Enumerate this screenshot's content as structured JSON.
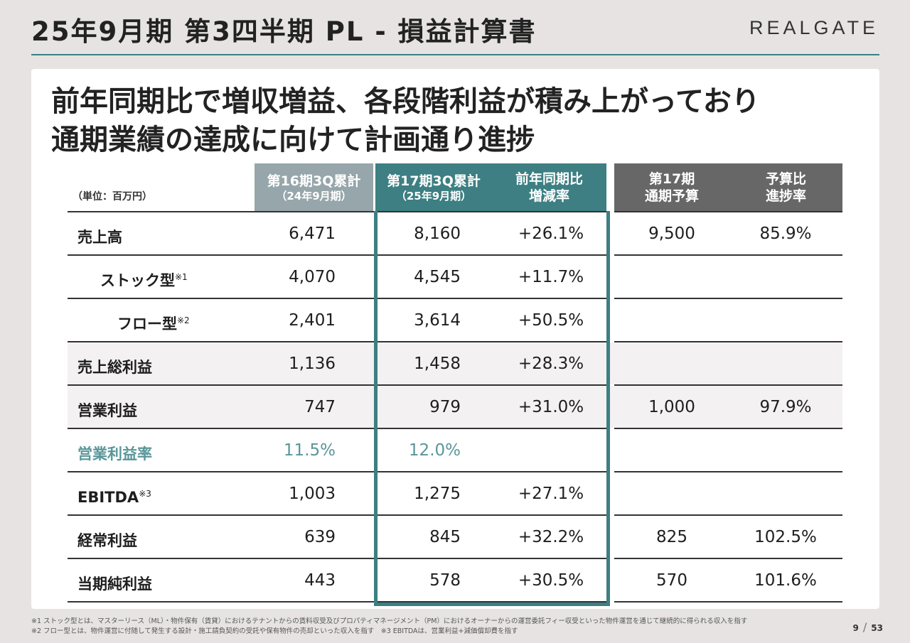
{
  "header": {
    "title": "25年9月期 第3四半期 PL - 損益計算書",
    "logo": "REALGATE"
  },
  "headline": {
    "line1": "前年同期比で増収増益、各段階利益が積み上がっており",
    "line2": "通期業績の達成に向けて計画通り進捗"
  },
  "table": {
    "unit": "（単位：百万円）",
    "columns": {
      "prev": {
        "label": "第16期3Q累計",
        "sub": "（24年9月期）"
      },
      "cur": {
        "label": "第17期3Q累計",
        "sub": "（25年9月期）"
      },
      "yoy": {
        "label1": "前年同期比",
        "label2": "増減率"
      },
      "budget": {
        "label1": "第17期",
        "label2": "通期予算"
      },
      "progress": {
        "label1": "予算比",
        "label2": "進捗率"
      }
    },
    "rows": [
      {
        "label": "売上高",
        "note": "",
        "prev": "6,471",
        "cur": "8,160",
        "yoy": "+26.1%",
        "budget": "9,500",
        "progress": "85.9%"
      },
      {
        "label": "ストック型",
        "note": "※1",
        "prev": "4,070",
        "cur": "4,545",
        "yoy": "+11.7%",
        "budget": "",
        "progress": ""
      },
      {
        "label": "フロー型",
        "note": "※2",
        "prev": "2,401",
        "cur": "3,614",
        "yoy": "+50.5%",
        "budget": "",
        "progress": ""
      },
      {
        "label": "売上総利益",
        "note": "",
        "prev": "1,136",
        "cur": "1,458",
        "yoy": "+28.3%",
        "budget": "",
        "progress": ""
      },
      {
        "label": "営業利益",
        "note": "",
        "prev": "747",
        "cur": "979",
        "yoy": "+31.0%",
        "budget": "1,000",
        "progress": "97.9%"
      },
      {
        "label": "営業利益率",
        "note": "",
        "prev": "11.5%",
        "cur": "12.0%",
        "yoy": "",
        "budget": "",
        "progress": ""
      },
      {
        "label": "EBITDA",
        "note": "※3",
        "prev": "1,003",
        "cur": "1,275",
        "yoy": "+27.1%",
        "budget": "",
        "progress": ""
      },
      {
        "label": "経常利益",
        "note": "",
        "prev": "639",
        "cur": "845",
        "yoy": "+32.2%",
        "budget": "825",
        "progress": "102.5%"
      },
      {
        "label": "当期純利益",
        "note": "",
        "prev": "443",
        "cur": "578",
        "yoy": "+30.5%",
        "budget": "570",
        "progress": "101.6%"
      }
    ]
  },
  "footnotes": {
    "line1": "※1 ストック型とは、マスターリース（ML）・物件保有（賃貸）におけるテナントからの賃料収受及びプロパティマネージメント（PM）におけるオーナーからの運営委託フィー収受といった物件運営を通じて継続的に得られる収入を指す",
    "line2": "※2 フロー型とは、物件運営に付随して発生する設計・施工請負契約の受託や保有物件の売却といった収入を指す　※3 EBITDAは、営業利益+減価償却費を指す"
  },
  "pager": {
    "current": "9",
    "total": "53"
  },
  "colors": {
    "accent": "#3d7f82",
    "prev_header": "#96a6ab",
    "budget_header": "#676767",
    "ratio_text": "#5a9699"
  }
}
